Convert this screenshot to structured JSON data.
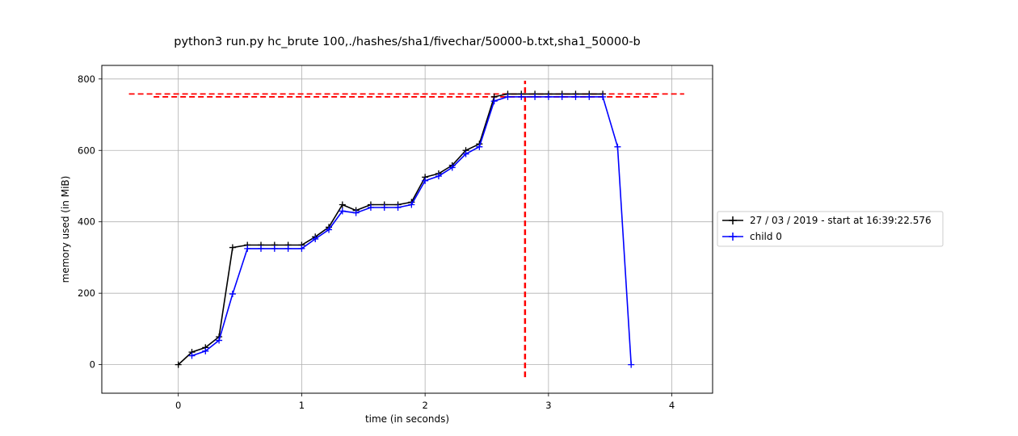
{
  "chart_data": {
    "type": "line",
    "title": "python3 run.py hc_brute 100,./hashes/sha1/fivechar/50000-b.txt,sha1_50000-b",
    "xlabel": "time (in seconds)",
    "ylabel": "memory used (in MiB)",
    "xlim": [
      -0.62,
      4.33
    ],
    "ylim": [
      -80,
      838
    ],
    "xticks": [
      0,
      1,
      2,
      3,
      4
    ],
    "xtick_labels": [
      "0",
      "1",
      "2",
      "3",
      "4"
    ],
    "yticks": [
      0,
      200,
      400,
      600,
      800
    ],
    "ytick_labels": [
      "0",
      "200",
      "400",
      "600",
      "800"
    ],
    "grid": true,
    "legend_placement": "outside-right",
    "series": [
      {
        "name": "27 / 03 / 2019 - start at 16:39:22.576",
        "color": "#000000",
        "marker": "+",
        "x": [
          0.0,
          0.11,
          0.22,
          0.33,
          0.44,
          0.56,
          0.67,
          0.78,
          0.89,
          1.0,
          1.11,
          1.22,
          1.33,
          1.44,
          1.56,
          1.67,
          1.78,
          1.89,
          2.0,
          2.11,
          2.22,
          2.33,
          2.44,
          2.56,
          2.67,
          2.78,
          2.89,
          3.0,
          3.11,
          3.22,
          3.33,
          3.44
        ],
        "y": [
          0,
          35,
          48,
          78,
          328,
          335,
          335,
          335,
          335,
          335,
          358,
          385,
          448,
          432,
          448,
          448,
          448,
          455,
          525,
          535,
          558,
          600,
          618,
          750,
          758,
          758,
          758,
          758,
          758,
          758,
          758,
          758
        ]
      },
      {
        "name": "child 0",
        "color": "#0000ff",
        "marker": "+",
        "x": [
          0.11,
          0.22,
          0.33,
          0.44,
          0.56,
          0.67,
          0.78,
          0.89,
          1.0,
          1.11,
          1.22,
          1.33,
          1.44,
          1.56,
          1.67,
          1.78,
          1.89,
          2.0,
          2.11,
          2.22,
          2.33,
          2.44,
          2.56,
          2.67,
          2.78,
          2.89,
          3.0,
          3.11,
          3.22,
          3.33,
          3.44,
          3.56,
          3.67
        ],
        "y": [
          25,
          38,
          68,
          198,
          325,
          325,
          325,
          325,
          325,
          352,
          378,
          430,
          425,
          440,
          440,
          440,
          448,
          515,
          528,
          552,
          590,
          610,
          738,
          750,
          750,
          750,
          750,
          750,
          750,
          750,
          750,
          610,
          0
        ]
      }
    ],
    "reference_lines": [
      {
        "orientation": "horizontal",
        "y": 758,
        "x_from": -0.4,
        "x_to": 4.1,
        "color": "#ff0000",
        "style": "dashed"
      },
      {
        "orientation": "horizontal",
        "y": 750,
        "x_from": -0.2,
        "x_to": 3.9,
        "color": "#ff0000",
        "style": "dashed"
      },
      {
        "orientation": "vertical",
        "x": 2.81,
        "y_from": -35,
        "y_to": 795,
        "color": "#ff0000",
        "style": "dashed"
      }
    ]
  }
}
